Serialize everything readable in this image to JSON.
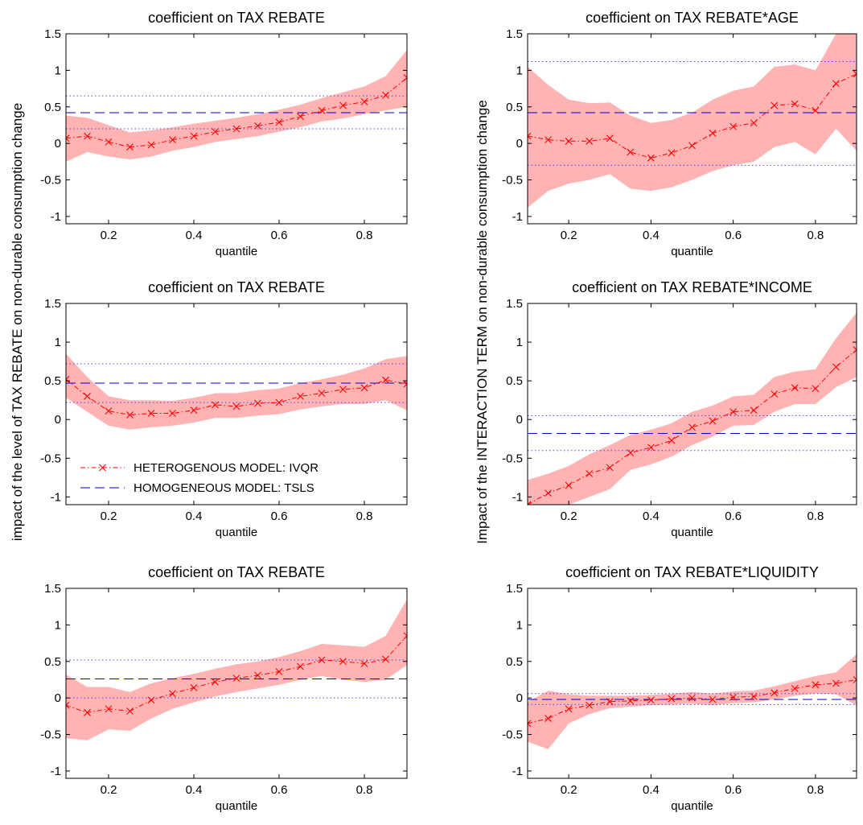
{
  "figure": {
    "ylabel_left": "impact of the level of TAX REBATE on non-durable consumption change",
    "ylabel_right": "Impact of the INTERACTION TERM on non-durable consumption change"
  },
  "legend": {
    "entries": [
      {
        "label": "HETEROGENOUS MODEL: IVQR",
        "style": "red-dashdot-x",
        "color": "#ff0000"
      },
      {
        "label": "HOMOGENEOUS MODEL: TSLS",
        "style": "blue-dashed",
        "color": "#0000ff"
      }
    ],
    "panel": 2,
    "placement": "lower-left"
  },
  "colors": {
    "ivqr_line": "#ff0000",
    "band_fill": "#ffb3b3",
    "tsls_line": "#0000cc",
    "ci_line": "#4444ff"
  },
  "chart_data": [
    {
      "type": "line",
      "title": "coefficient on TAX REBATE",
      "xlabel": "quantile",
      "xlim": [
        0.1,
        0.9
      ],
      "ylim": [
        -1.1,
        1.5
      ],
      "xticks": [
        "0.2",
        "0.4",
        "0.6",
        "0.8"
      ],
      "yticks": [
        "-1",
        "-0.5",
        "0",
        "0.5",
        "1",
        "1.5"
      ],
      "x": [
        0.1,
        0.15,
        0.2,
        0.25,
        0.3,
        0.35,
        0.4,
        0.45,
        0.5,
        0.55,
        0.6,
        0.65,
        0.7,
        0.75,
        0.8,
        0.85,
        0.9
      ],
      "series": [
        {
          "values": [
            0.07,
            0.1,
            0.02,
            -0.05,
            -0.02,
            0.05,
            0.1,
            0.16,
            0.2,
            0.24,
            0.29,
            0.37,
            0.45,
            0.52,
            0.57,
            0.66,
            0.9
          ],
          "lower": [
            -0.25,
            -0.12,
            -0.18,
            -0.22,
            -0.18,
            -0.1,
            -0.05,
            0.02,
            0.06,
            0.1,
            0.16,
            0.22,
            0.3,
            0.34,
            0.4,
            0.45,
            0.5
          ],
          "upper": [
            0.38,
            0.35,
            0.25,
            0.15,
            0.18,
            0.22,
            0.27,
            0.31,
            0.35,
            0.4,
            0.46,
            0.53,
            0.62,
            0.7,
            0.78,
            0.92,
            1.28
          ]
        }
      ],
      "tsls": {
        "estimate": 0.42,
        "ci_low": 0.2,
        "ci_high": 0.65
      }
    },
    {
      "type": "line",
      "title": "coefficient on TAX REBATE*AGE",
      "xlabel": "quantile",
      "xlim": [
        0.1,
        0.9
      ],
      "ylim": [
        -1.1,
        1.5
      ],
      "xticks": [
        "0.2",
        "0.4",
        "0.6",
        "0.8"
      ],
      "yticks": [
        "-1",
        "-0.5",
        "0",
        "0.5",
        "1",
        "1.5"
      ],
      "x": [
        0.1,
        0.15,
        0.2,
        0.25,
        0.3,
        0.35,
        0.4,
        0.45,
        0.5,
        0.55,
        0.6,
        0.65,
        0.7,
        0.75,
        0.8,
        0.85,
        0.9
      ],
      "series": [
        {
          "values": [
            0.1,
            0.05,
            0.03,
            0.03,
            0.07,
            -0.12,
            -0.2,
            -0.13,
            -0.03,
            0.14,
            0.23,
            0.28,
            0.52,
            0.54,
            0.45,
            0.82,
            0.95
          ],
          "lower": [
            -0.88,
            -0.65,
            -0.55,
            -0.5,
            -0.42,
            -0.62,
            -0.65,
            -0.6,
            -0.5,
            -0.38,
            -0.3,
            -0.25,
            -0.05,
            0.02,
            -0.15,
            0.2,
            -0.1
          ],
          "upper": [
            1.05,
            0.8,
            0.6,
            0.55,
            0.56,
            0.38,
            0.28,
            0.32,
            0.42,
            0.6,
            0.72,
            0.78,
            1.05,
            1.08,
            1.0,
            1.5,
            1.5
          ]
        }
      ],
      "tsls": {
        "estimate": 0.42,
        "ci_low": -0.3,
        "ci_high": 1.12
      }
    },
    {
      "type": "line",
      "title": "coefficient on TAX REBATE",
      "xlabel": "quantile",
      "xlim": [
        0.1,
        0.9
      ],
      "ylim": [
        -1.1,
        1.5
      ],
      "xticks": [
        "0.2",
        "0.4",
        "0.6",
        "0.8"
      ],
      "yticks": [
        "-1",
        "-0.5",
        "0",
        "0.5",
        "1",
        "1.5"
      ],
      "x": [
        0.1,
        0.15,
        0.2,
        0.25,
        0.3,
        0.35,
        0.4,
        0.45,
        0.5,
        0.55,
        0.6,
        0.65,
        0.7,
        0.75,
        0.8,
        0.85,
        0.9
      ],
      "series": [
        {
          "values": [
            0.52,
            0.3,
            0.11,
            0.06,
            0.08,
            0.08,
            0.12,
            0.19,
            0.17,
            0.21,
            0.22,
            0.3,
            0.34,
            0.39,
            0.41,
            0.51,
            0.46
          ],
          "lower": [
            0.28,
            0.1,
            -0.08,
            -0.13,
            -0.1,
            -0.08,
            -0.04,
            0.02,
            0.02,
            0.05,
            0.07,
            0.13,
            0.17,
            0.2,
            0.2,
            0.25,
            0.12
          ],
          "upper": [
            0.85,
            0.55,
            0.3,
            0.25,
            0.25,
            0.24,
            0.28,
            0.34,
            0.34,
            0.38,
            0.4,
            0.47,
            0.52,
            0.58,
            0.66,
            0.78,
            0.82
          ]
        }
      ],
      "tsls": {
        "estimate": 0.47,
        "ci_low": 0.22,
        "ci_high": 0.72
      }
    },
    {
      "type": "line",
      "title": "coefficient on TAX REBATE*INCOME",
      "xlabel": "quantile",
      "xlim": [
        0.1,
        0.9
      ],
      "ylim": [
        -1.1,
        1.5
      ],
      "xticks": [
        "0.2",
        "0.4",
        "0.6",
        "0.8"
      ],
      "yticks": [
        "-1",
        "-0.5",
        "0",
        "0.5",
        "1",
        "1.5"
      ],
      "x": [
        0.1,
        0.15,
        0.2,
        0.25,
        0.3,
        0.35,
        0.4,
        0.45,
        0.5,
        0.55,
        0.6,
        0.65,
        0.7,
        0.75,
        0.8,
        0.85,
        0.9
      ],
      "series": [
        {
          "values": [
            -1.1,
            -0.95,
            -0.85,
            -0.7,
            -0.62,
            -0.43,
            -0.36,
            -0.27,
            -0.1,
            -0.02,
            0.1,
            0.12,
            0.33,
            0.41,
            0.4,
            0.68,
            0.9
          ],
          "lower": [
            -1.1,
            -1.1,
            -1.1,
            -1.0,
            -0.9,
            -0.65,
            -0.58,
            -0.48,
            -0.33,
            -0.22,
            -0.08,
            -0.07,
            0.1,
            0.2,
            0.2,
            0.42,
            0.55
          ],
          "upper": [
            -0.78,
            -0.7,
            -0.6,
            -0.45,
            -0.33,
            -0.2,
            -0.13,
            -0.05,
            0.1,
            0.18,
            0.3,
            0.32,
            0.55,
            0.62,
            0.65,
            1.05,
            1.38
          ]
        }
      ],
      "tsls": {
        "estimate": -0.18,
        "ci_low": -0.4,
        "ci_high": 0.05
      }
    },
    {
      "type": "line",
      "title": "coefficient on TAX REBATE",
      "xlabel": "quantile",
      "xlim": [
        0.1,
        0.9
      ],
      "ylim": [
        -1.1,
        1.5
      ],
      "xticks": [
        "0.2",
        "0.4",
        "0.6",
        "0.8"
      ],
      "yticks": [
        "-1",
        "-0.5",
        "0",
        "0.5",
        "1",
        "1.5"
      ],
      "x": [
        0.1,
        0.15,
        0.2,
        0.25,
        0.3,
        0.35,
        0.4,
        0.45,
        0.5,
        0.55,
        0.6,
        0.65,
        0.7,
        0.75,
        0.8,
        0.85,
        0.9
      ],
      "series": [
        {
          "values": [
            -0.1,
            -0.2,
            -0.15,
            -0.18,
            -0.03,
            0.06,
            0.14,
            0.22,
            0.27,
            0.31,
            0.36,
            0.43,
            0.52,
            0.5,
            0.47,
            0.53,
            0.85
          ],
          "lower": [
            -0.55,
            -0.58,
            -0.43,
            -0.45,
            -0.28,
            -0.15,
            -0.06,
            0.02,
            0.08,
            0.13,
            0.18,
            0.25,
            0.3,
            0.25,
            0.22,
            0.25,
            0.45
          ],
          "upper": [
            0.32,
            0.15,
            0.15,
            0.08,
            0.2,
            0.27,
            0.33,
            0.4,
            0.46,
            0.5,
            0.56,
            0.64,
            0.74,
            0.72,
            0.7,
            0.85,
            1.35
          ]
        }
      ],
      "tsls": {
        "estimate": 0.26,
        "ci_low": 0.0,
        "ci_high": 0.52
      }
    },
    {
      "type": "line",
      "title": "coefficient on TAX REBATE*LIQUIDITY",
      "xlabel": "quantile",
      "xlim": [
        0.1,
        0.9
      ],
      "ylim": [
        -1.1,
        1.5
      ],
      "xticks": [
        "0.2",
        "0.4",
        "0.6",
        "0.8"
      ],
      "yticks": [
        "-1",
        "-0.5",
        "0",
        "0.5",
        "1",
        "1.5"
      ],
      "x": [
        0.1,
        0.15,
        0.2,
        0.25,
        0.3,
        0.35,
        0.4,
        0.45,
        0.5,
        0.55,
        0.6,
        0.65,
        0.7,
        0.75,
        0.8,
        0.85,
        0.9
      ],
      "series": [
        {
          "values": [
            -0.35,
            -0.28,
            -0.15,
            -0.1,
            -0.05,
            -0.04,
            -0.03,
            -0.01,
            0.0,
            -0.02,
            0.01,
            0.02,
            0.07,
            0.13,
            0.18,
            0.2,
            0.25
          ],
          "lower": [
            -0.6,
            -0.7,
            -0.35,
            -0.22,
            -0.14,
            -0.12,
            -0.1,
            -0.09,
            -0.08,
            -0.1,
            -0.07,
            -0.06,
            -0.02,
            0.03,
            0.06,
            0.05,
            -0.1
          ],
          "upper": [
            -0.05,
            0.1,
            0.05,
            0.03,
            0.03,
            0.03,
            0.04,
            0.06,
            0.08,
            0.06,
            0.09,
            0.1,
            0.16,
            0.23,
            0.3,
            0.35,
            0.6
          ]
        }
      ],
      "tsls": {
        "estimate": -0.02,
        "ci_low": -0.09,
        "ci_high": 0.06
      }
    }
  ]
}
